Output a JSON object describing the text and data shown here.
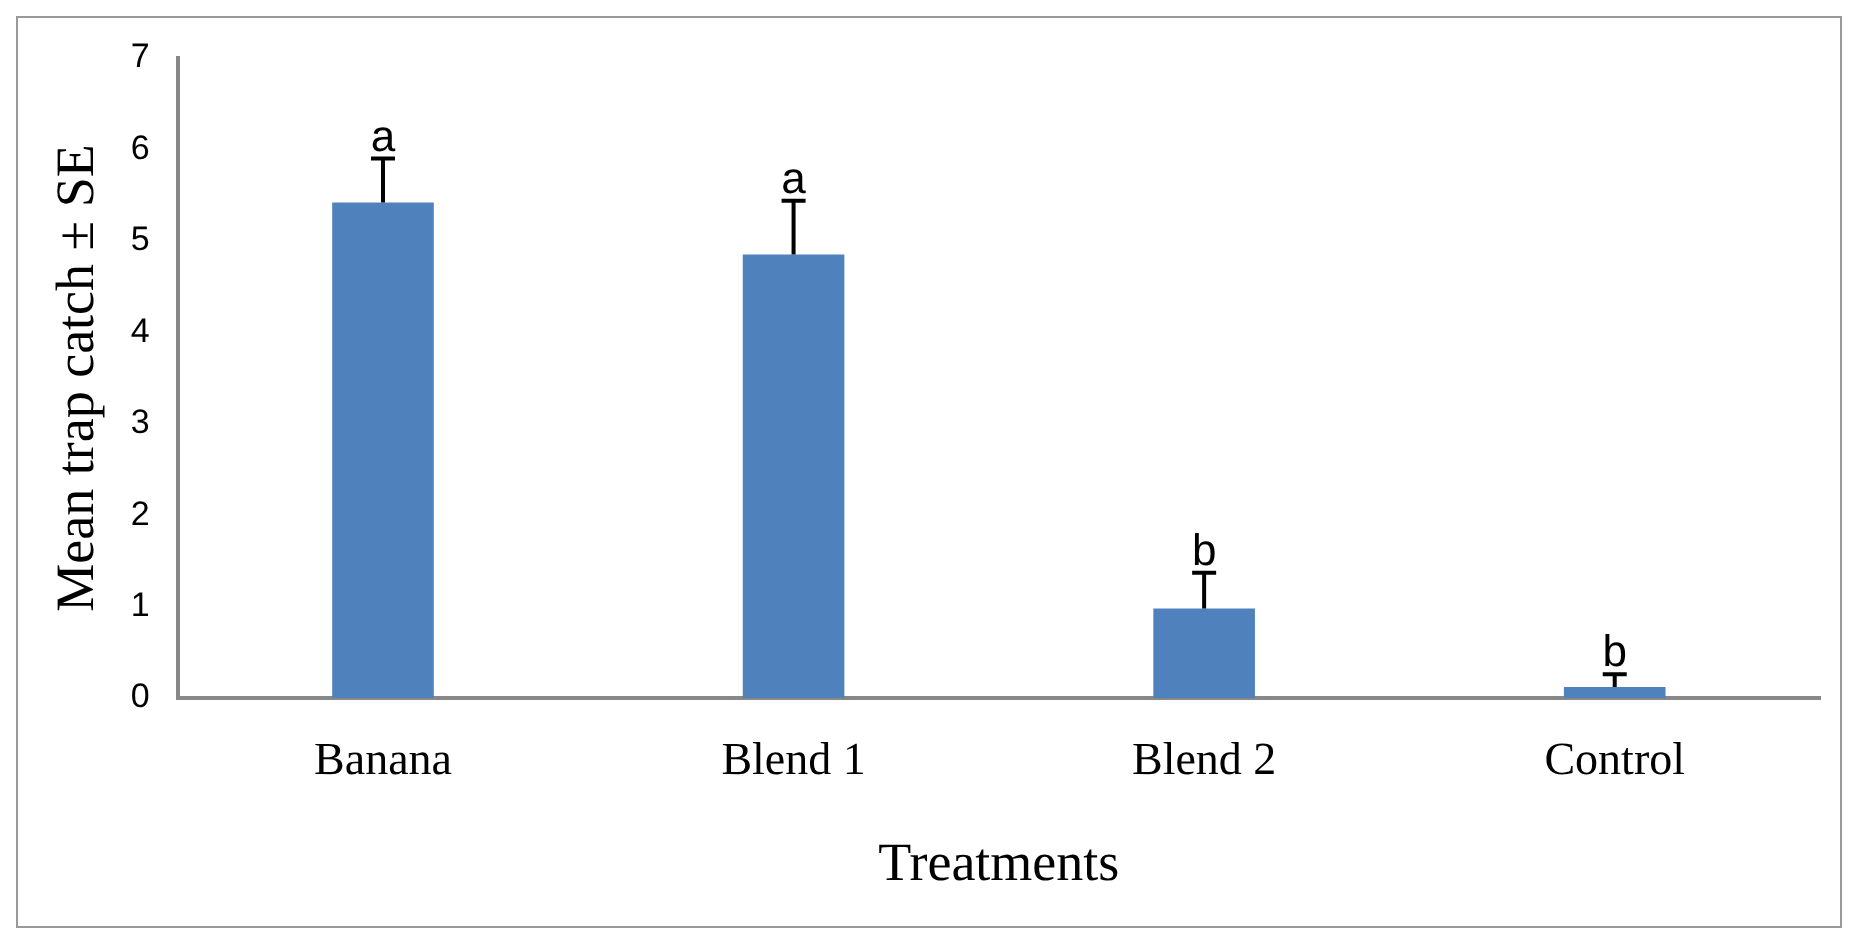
{
  "chart_data": {
    "type": "bar",
    "xlabel": "Treatments",
    "ylabel": "Mean trap catch ± SE",
    "categories": [
      "Banana",
      "Blend 1",
      "Blend 2",
      "Control"
    ],
    "values": [
      5.42,
      4.85,
      0.98,
      0.12
    ],
    "errors": [
      0.48,
      0.59,
      0.39,
      0.14
    ],
    "color": "#4f81bd",
    "ylim": [
      0,
      7
    ],
    "yticks": [
      0,
      1,
      2,
      3,
      4,
      5,
      6,
      7
    ],
    "grid": false,
    "legend": false,
    "annotations": [
      {
        "text": "a",
        "x": "Banana",
        "y": 5.9
      },
      {
        "text": "a",
        "x": "Blend 1",
        "y": 5.44
      },
      {
        "text": "b",
        "x": "Blend 2",
        "y": 1.37
      },
      {
        "text": "b",
        "x": "Control",
        "y": 0.26
      }
    ]
  }
}
